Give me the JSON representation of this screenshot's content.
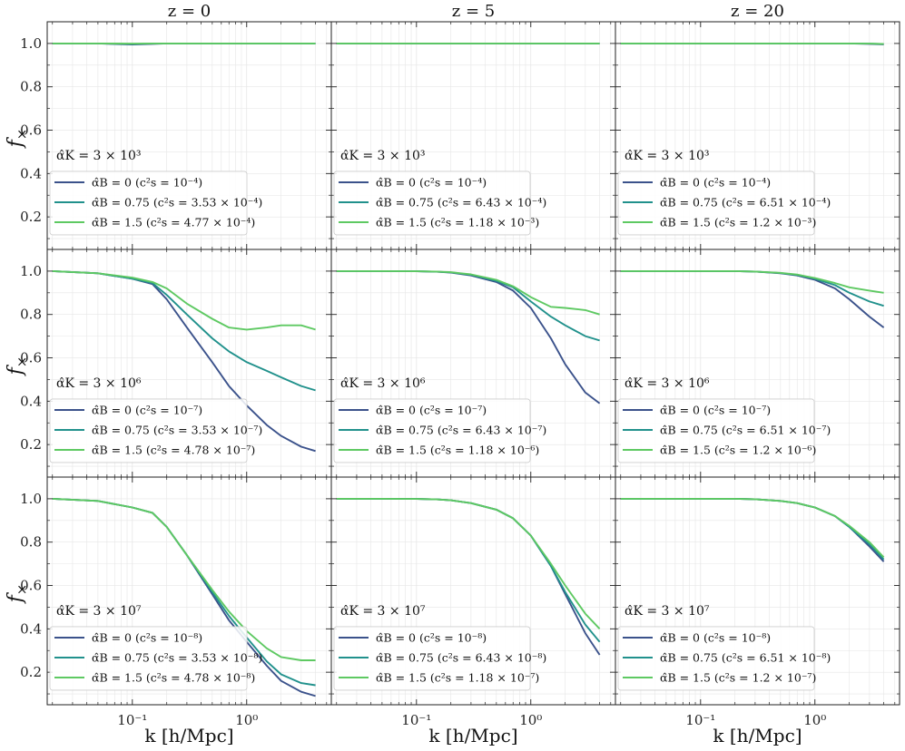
{
  "figure": {
    "ylabel_main": "f",
    "ylabel_sub": "×",
    "xlabel": "k [h/Mpc]",
    "col_titles": [
      "z = 0",
      "z = 5",
      "z = 20"
    ]
  },
  "colors": {
    "dark_blue": "#3b528b",
    "teal": "#21918c",
    "light_green": "#5ec962",
    "grid": "#e6e6e6",
    "axis": "#222222"
  },
  "chart_data": {
    "type": "line",
    "xscale": "log",
    "xlim": [
      0.018,
      5.5
    ],
    "ylim": [
      0.05,
      1.1
    ],
    "yticks": [
      0.2,
      0.4,
      0.6,
      0.8,
      1.0
    ],
    "ytick_labels": [
      "0.2",
      "0.4",
      "0.6",
      "0.8",
      "1.0"
    ],
    "xticks": [
      0.1,
      1.0
    ],
    "xtick_labels": [
      "10⁻¹",
      "10⁰"
    ],
    "k": [
      0.02,
      0.05,
      0.1,
      0.15,
      0.2,
      0.3,
      0.5,
      0.7,
      1.0,
      1.5,
      2.0,
      3.0,
      4.0
    ],
    "series_names": [
      "α̂B = 0",
      "α̂B = 0.75",
      "α̂B = 1.5"
    ],
    "panels": [
      {
        "row": 0,
        "col": 0,
        "z": "z = 0",
        "annotation": "α̂K = 3 × 10³",
        "series": [
          {
            "name": "α̂B = 0",
            "legend": "α̂B = 0 (c²s = 10⁻⁴)",
            "values": [
              1.0,
              1.0,
              0.995,
              0.998,
              1.0,
              1.0,
              1.0,
              1.0,
              1.0,
              1.0,
              1.0,
              1.0,
              1.0
            ]
          },
          {
            "name": "α̂B = 0.75",
            "legend": "α̂B = 0.75 (c²s = 3.53 × 10⁻⁴)",
            "values": [
              1.0,
              1.0,
              0.997,
              0.999,
              1.0,
              1.0,
              1.0,
              1.0,
              1.0,
              1.0,
              1.0,
              1.0,
              1.0
            ]
          },
          {
            "name": "α̂B = 1.5",
            "legend": "α̂B = 1.5 (c²s = 4.77 × 10⁻⁴)",
            "values": [
              1.0,
              1.0,
              0.999,
              1.0,
              1.0,
              1.0,
              1.0,
              1.0,
              1.0,
              1.0,
              1.0,
              1.0,
              1.0
            ]
          }
        ]
      },
      {
        "row": 0,
        "col": 1,
        "z": "z = 5",
        "annotation": "α̂K = 3 × 10³",
        "series": [
          {
            "name": "α̂B = 0",
            "legend": "α̂B = 0 (c²s = 10⁻⁴)",
            "values": [
              1.0,
              1.0,
              1.0,
              1.0,
              1.0,
              1.0,
              1.0,
              1.0,
              1.0,
              1.0,
              1.0,
              1.0,
              1.0
            ]
          },
          {
            "name": "α̂B = 0.75",
            "legend": "α̂B = 0.75 (c²s = 6.43 × 10⁻⁴)",
            "values": [
              1.0,
              1.0,
              1.0,
              1.0,
              1.0,
              1.0,
              1.0,
              1.0,
              1.0,
              1.0,
              1.0,
              1.0,
              1.0
            ]
          },
          {
            "name": "α̂B = 1.5",
            "legend": "α̂B = 1.5 (c²s = 1.18 × 10⁻³)",
            "values": [
              1.0,
              1.0,
              1.0,
              1.0,
              1.0,
              1.0,
              1.0,
              1.0,
              1.0,
              1.0,
              1.0,
              1.0,
              1.0
            ]
          }
        ]
      },
      {
        "row": 0,
        "col": 2,
        "z": "z = 20",
        "annotation": "α̂K = 3 × 10³",
        "series": [
          {
            "name": "α̂B = 0",
            "legend": "α̂B = 0 (c²s = 10⁻⁴)",
            "values": [
              1.0,
              1.0,
              1.0,
              1.0,
              1.0,
              1.0,
              1.0,
              1.0,
              1.0,
              1.0,
              1.0,
              0.998,
              0.996
            ]
          },
          {
            "name": "α̂B = 0.75",
            "legend": "α̂B = 0.75 (c²s = 6.51 × 10⁻⁴)",
            "values": [
              1.0,
              1.0,
              1.0,
              1.0,
              1.0,
              1.0,
              1.0,
              1.0,
              1.0,
              1.0,
              1.0,
              0.999,
              0.997
            ]
          },
          {
            "name": "α̂B = 1.5",
            "legend": "α̂B = 1.5 (c²s = 1.2 × 10⁻³)",
            "values": [
              1.0,
              1.0,
              1.0,
              1.0,
              1.0,
              1.0,
              1.0,
              1.0,
              1.0,
              1.0,
              1.0,
              0.999,
              0.998
            ]
          }
        ]
      },
      {
        "row": 1,
        "col": 0,
        "z": "z = 0",
        "annotation": "α̂K = 3 × 10⁶",
        "series": [
          {
            "name": "α̂B = 0",
            "legend": "α̂B = 0 (c²s = 10⁻⁷)",
            "values": [
              1.0,
              0.99,
              0.965,
              0.94,
              0.87,
              0.74,
              0.58,
              0.47,
              0.38,
              0.29,
              0.24,
              0.19,
              0.17
            ]
          },
          {
            "name": "α̂B = 0.75",
            "legend": "α̂B = 0.75 (c²s = 3.53 × 10⁻⁷)",
            "values": [
              1.0,
              0.99,
              0.965,
              0.945,
              0.89,
              0.8,
              0.69,
              0.63,
              0.58,
              0.54,
              0.51,
              0.47,
              0.45
            ]
          },
          {
            "name": "α̂B = 1.5",
            "legend": "α̂B = 1.5 (c²s = 4.78 × 10⁻⁷)",
            "values": [
              1.0,
              0.99,
              0.97,
              0.95,
              0.92,
              0.85,
              0.78,
              0.74,
              0.73,
              0.74,
              0.75,
              0.75,
              0.73
            ]
          }
        ]
      },
      {
        "row": 1,
        "col": 1,
        "z": "z = 5",
        "annotation": "α̂K = 3 × 10⁶",
        "series": [
          {
            "name": "α̂B = 0",
            "legend": "α̂B = 0 (c²s = 10⁻⁷)",
            "values": [
              1.0,
              1.0,
              0.999,
              0.997,
              0.993,
              0.98,
              0.95,
              0.91,
              0.83,
              0.69,
              0.57,
              0.44,
              0.39
            ]
          },
          {
            "name": "α̂B = 0.75",
            "legend": "α̂B = 0.75 (c²s = 6.43 × 10⁻⁷)",
            "values": [
              1.0,
              1.0,
              0.999,
              0.997,
              0.994,
              0.983,
              0.955,
              0.925,
              0.86,
              0.79,
              0.75,
              0.7,
              0.68
            ]
          },
          {
            "name": "α̂B = 1.5",
            "legend": "α̂B = 1.5 (c²s = 1.18 × 10⁻⁶)",
            "values": [
              1.0,
              1.0,
              0.999,
              0.998,
              0.995,
              0.985,
              0.96,
              0.93,
              0.88,
              0.835,
              0.83,
              0.82,
              0.8
            ]
          }
        ]
      },
      {
        "row": 1,
        "col": 2,
        "z": "z = 20",
        "annotation": "α̂K = 3 × 10⁶",
        "series": [
          {
            "name": "α̂B = 0",
            "legend": "α̂B = 0 (c²s = 10⁻⁷)",
            "values": [
              1.0,
              1.0,
              1.0,
              1.0,
              1.0,
              0.998,
              0.99,
              0.98,
              0.96,
              0.92,
              0.87,
              0.79,
              0.74
            ]
          },
          {
            "name": "α̂B = 0.75",
            "legend": "α̂B = 0.75 (c²s = 6.51 × 10⁻⁷)",
            "values": [
              1.0,
              1.0,
              1.0,
              1.0,
              1.0,
              0.998,
              0.991,
              0.982,
              0.965,
              0.935,
              0.9,
              0.86,
              0.84
            ]
          },
          {
            "name": "α̂B = 1.5",
            "legend": "α̂B = 1.5 (c²s = 1.2 × 10⁻⁶)",
            "values": [
              1.0,
              1.0,
              1.0,
              1.0,
              1.0,
              0.998,
              0.992,
              0.984,
              0.968,
              0.945,
              0.925,
              0.91,
              0.9
            ]
          }
        ]
      },
      {
        "row": 2,
        "col": 0,
        "z": "z = 0",
        "annotation": "α̂K = 3 × 10⁷",
        "series": [
          {
            "name": "α̂B = 0",
            "legend": "α̂B = 0 (c²s = 10⁻⁸)",
            "values": [
              1.0,
              0.99,
              0.96,
              0.935,
              0.87,
              0.74,
              0.56,
              0.44,
              0.34,
              0.23,
              0.16,
              0.11,
              0.09
            ]
          },
          {
            "name": "α̂B = 0.75",
            "legend": "α̂B = 0.75 (c²s = 3.53 × 10⁻⁸)",
            "values": [
              1.0,
              0.99,
              0.96,
              0.935,
              0.87,
              0.74,
              0.57,
              0.46,
              0.36,
              0.25,
              0.19,
              0.15,
              0.14
            ]
          },
          {
            "name": "α̂B = 1.5",
            "legend": "α̂B = 1.5 (c²s = 4.78 × 10⁻⁸)",
            "values": [
              1.0,
              0.99,
              0.96,
              0.935,
              0.87,
              0.74,
              0.58,
              0.48,
              0.39,
              0.31,
              0.27,
              0.255,
              0.255
            ]
          }
        ]
      },
      {
        "row": 2,
        "col": 1,
        "z": "z = 5",
        "annotation": "α̂K = 3 × 10⁷",
        "series": [
          {
            "name": "α̂B = 0",
            "legend": "α̂B = 0 (c²s = 10⁻⁸)",
            "values": [
              1.0,
              1.0,
              0.999,
              0.997,
              0.993,
              0.98,
              0.95,
              0.91,
              0.83,
              0.69,
              0.56,
              0.38,
              0.28
            ]
          },
          {
            "name": "α̂B = 0.75",
            "legend": "α̂B = 0.75 (c²s = 6.43 × 10⁻⁸)",
            "values": [
              1.0,
              1.0,
              0.999,
              0.997,
              0.993,
              0.98,
              0.95,
              0.91,
              0.83,
              0.69,
              0.57,
              0.42,
              0.34
            ]
          },
          {
            "name": "α̂B = 1.5",
            "legend": "α̂B = 1.5 (c²s = 1.18 × 10⁻⁷)",
            "values": [
              1.0,
              1.0,
              0.999,
              0.997,
              0.993,
              0.98,
              0.95,
              0.91,
              0.83,
              0.7,
              0.6,
              0.47,
              0.4
            ]
          }
        ]
      },
      {
        "row": 2,
        "col": 2,
        "z": "z = 20",
        "annotation": "α̂K = 3 × 10⁷",
        "series": [
          {
            "name": "α̂B = 0",
            "legend": "α̂B = 0 (c²s = 10⁻⁸)",
            "values": [
              1.0,
              1.0,
              1.0,
              1.0,
              1.0,
              0.998,
              0.99,
              0.98,
              0.96,
              0.92,
              0.87,
              0.78,
              0.71
            ]
          },
          {
            "name": "α̂B = 0.75",
            "legend": "α̂B = 0.75 (c²s = 6.51 × 10⁻⁸)",
            "values": [
              1.0,
              1.0,
              1.0,
              1.0,
              1.0,
              0.998,
              0.99,
              0.98,
              0.96,
              0.92,
              0.87,
              0.79,
              0.72
            ]
          },
          {
            "name": "α̂B = 1.5",
            "legend": "α̂B = 1.5 (c²s = 1.2 × 10⁻⁷)",
            "values": [
              1.0,
              1.0,
              1.0,
              1.0,
              1.0,
              0.998,
              0.99,
              0.98,
              0.96,
              0.92,
              0.875,
              0.8,
              0.73
            ]
          }
        ]
      }
    ]
  }
}
